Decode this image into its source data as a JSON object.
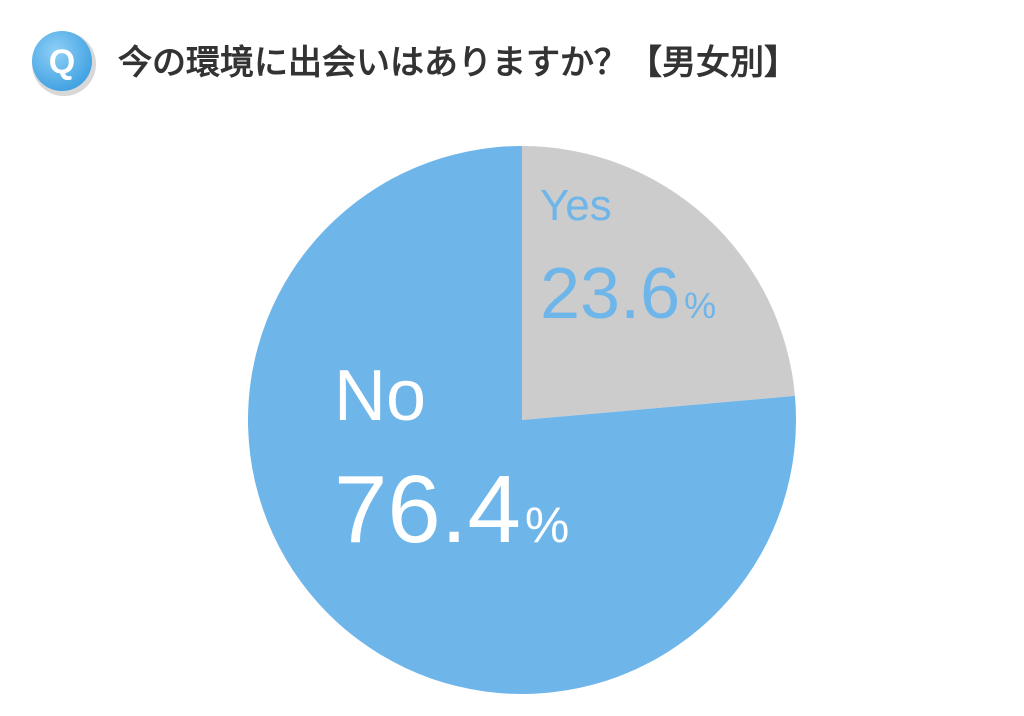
{
  "chart_data": {
    "type": "pie",
    "badge": "Q",
    "title": "今の環境に出会いはありますか？【男女別】",
    "categories": [
      "Yes",
      "No"
    ],
    "values": [
      23.6,
      76.4
    ],
    "unit": "%",
    "colors": [
      "#cccccc",
      "#6eb5ea"
    ],
    "label_colors": [
      "#6eb5ea",
      "#ffffff"
    ]
  }
}
